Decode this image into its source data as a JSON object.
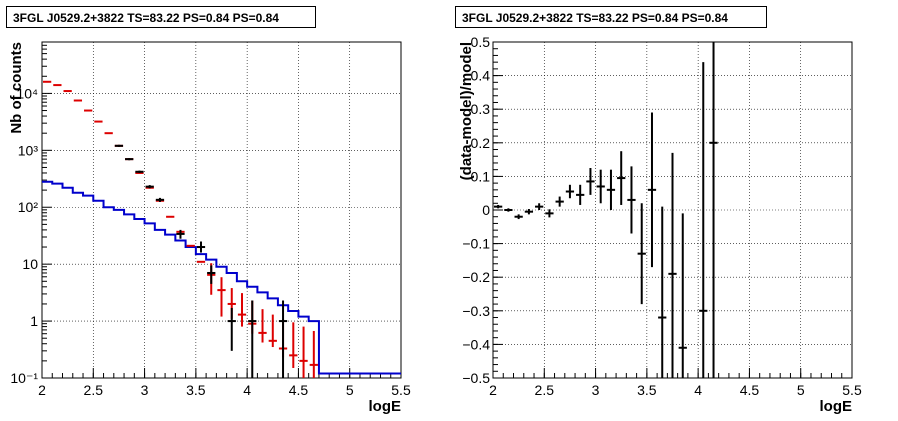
{
  "chart_data": [
    {
      "type": "step",
      "title": "3FGL J0529.2+3822 TS=83.22 PS=0.84 PS=0.84",
      "xlabel": "logE",
      "ylabel": "Nb of counts",
      "xlim": [
        2,
        5.5
      ],
      "ylim": [
        0.1,
        80000
      ],
      "yscale": "log",
      "grid": true,
      "xticks": [
        "2",
        "2.5",
        "3",
        "3.5",
        "4",
        "4.5",
        "5",
        "5.5"
      ],
      "yticks": [
        "10⁻¹",
        "1",
        "10",
        "10²",
        "10³",
        "10⁴"
      ],
      "bin_width": 0.1,
      "bin_centers": [
        2.05,
        2.15,
        2.25,
        2.35,
        2.45,
        2.55,
        2.65,
        2.75,
        2.85,
        2.95,
        3.05,
        3.15,
        3.25,
        3.35,
        3.45,
        3.55,
        3.65,
        3.75,
        3.85,
        3.95,
        4.05,
        4.15,
        4.25,
        4.35,
        4.45,
        4.55,
        4.65,
        4.75,
        4.85,
        4.95,
        5.05,
        5.15,
        5.25,
        5.35,
        5.45
      ],
      "series": [
        {
          "role": "background model",
          "color": "#0000cc",
          "style": "step",
          "values": [
            280,
            260,
            220,
            180,
            160,
            130,
            100,
            90,
            75,
            62,
            52,
            40,
            33,
            26,
            20,
            15,
            12,
            9,
            7,
            5,
            4,
            3.2,
            2.5,
            1.9,
            1.5,
            1.2,
            1.0,
            0.12,
            0.12,
            0.12,
            0.12,
            0.12,
            0.12,
            0.12,
            0.12
          ]
        },
        {
          "role": "total model",
          "color": "#dd0000",
          "style": "markers",
          "values": [
            16000,
            14000,
            11000,
            7500,
            5000,
            3200,
            2000,
            1200,
            700,
            400,
            220,
            130,
            68,
            37,
            21,
            11,
            6.5,
            3.5,
            2,
            1.3,
            0.9,
            0.62,
            0.45,
            0.33,
            0.25,
            0.2,
            0.17
          ],
          "err_low": [
            0,
            0,
            0,
            0,
            0,
            0,
            0,
            0,
            0,
            0,
            0,
            0,
            0,
            0,
            0,
            0,
            3.6,
            2.3,
            0.9,
            0.5,
            0.3,
            0.2,
            0.1,
            0.1,
            0.1,
            0.1,
            0.1
          ],
          "err_high": [
            0,
            0,
            0,
            0,
            0,
            0,
            0,
            0,
            0,
            0,
            0,
            0,
            0,
            0,
            0,
            0,
            3.9,
            2.4,
            1.8,
            1.8,
            1.4,
            1.0,
            0.85,
            0.75,
            0.7,
            0.6,
            0.5
          ]
        },
        {
          "role": "data",
          "color": "#000000",
          "style": "errorbars",
          "points": [
            {
              "x": 2.75,
              "y": 1200,
              "lo": 1150,
              "hi": 1250
            },
            {
              "x": 2.85,
              "y": 700,
              "lo": 670,
              "hi": 730
            },
            {
              "x": 2.95,
              "y": 420,
              "lo": 400,
              "hi": 440
            },
            {
              "x": 3.05,
              "y": 230,
              "lo": 215,
              "hi": 245
            },
            {
              "x": 3.15,
              "y": 135,
              "lo": 124,
              "hi": 146
            },
            {
              "x": 3.35,
              "y": 34,
              "lo": 28,
              "hi": 40
            },
            {
              "x": 3.55,
              "y": 20,
              "lo": 16,
              "hi": 25
            },
            {
              "x": 3.65,
              "y": 7,
              "lo": 4.5,
              "hi": 9.5
            },
            {
              "x": 3.85,
              "y": 1,
              "lo": 0.3,
              "hi": 1.7
            },
            {
              "x": 4.05,
              "y": 1,
              "lo": 0.1,
              "hi": 2.3
            },
            {
              "x": 4.35,
              "y": 1,
              "lo": 0.1,
              "hi": 2.3
            }
          ]
        }
      ]
    },
    {
      "type": "errorbar",
      "title": "3FGL J0529.2+3822 TS=83.22 PS=0.84 PS=0.84",
      "xlabel": "logE",
      "ylabel": "(data-model)/model",
      "xlim": [
        2,
        5.5
      ],
      "ylim": [
        -0.5,
        0.5
      ],
      "grid": true,
      "xticks": [
        "2",
        "2.5",
        "3",
        "3.5",
        "4",
        "4.5",
        "5",
        "5.5"
      ],
      "yticks": [
        "−0.5",
        "−0.4",
        "−0.3",
        "−0.2",
        "−0.1",
        "0",
        "0.1",
        "0.2",
        "0.3",
        "0.4",
        "0.5"
      ],
      "bin_width": 0.1,
      "points": [
        {
          "x": 2.05,
          "y": 0.01,
          "err": 0.005
        },
        {
          "x": 2.15,
          "y": 0.0,
          "err": 0.005
        },
        {
          "x": 2.25,
          "y": -0.02,
          "err": 0.007
        },
        {
          "x": 2.35,
          "y": -0.005,
          "err": 0.008
        },
        {
          "x": 2.45,
          "y": 0.01,
          "err": 0.01
        },
        {
          "x": 2.55,
          "y": -0.01,
          "err": 0.012
        },
        {
          "x": 2.65,
          "y": 0.025,
          "err": 0.015
        },
        {
          "x": 2.75,
          "y": 0.055,
          "err": 0.02
        },
        {
          "x": 2.85,
          "y": 0.045,
          "err": 0.03
        },
        {
          "x": 2.95,
          "y": 0.085,
          "err": 0.04
        },
        {
          "x": 3.05,
          "y": 0.07,
          "err": 0.05
        },
        {
          "x": 3.15,
          "y": 0.06,
          "err": 0.06
        },
        {
          "x": 3.25,
          "y": 0.095,
          "err": 0.08
        },
        {
          "x": 3.35,
          "y": 0.03,
          "err": 0.1
        },
        {
          "x": 3.45,
          "y": -0.13,
          "err": 0.15
        },
        {
          "x": 3.55,
          "y": 0.06,
          "err": 0.23
        },
        {
          "x": 3.65,
          "y": -0.32,
          "err": 0.33
        },
        {
          "x": 3.75,
          "y": -0.19,
          "err": 0.36
        },
        {
          "x": 3.85,
          "y": -0.41,
          "err": 0.4
        },
        {
          "x": 4.05,
          "y": -0.3,
          "err": 0.74
        },
        {
          "x": 4.15,
          "y": 0.2,
          "err": 0.8
        }
      ]
    }
  ]
}
